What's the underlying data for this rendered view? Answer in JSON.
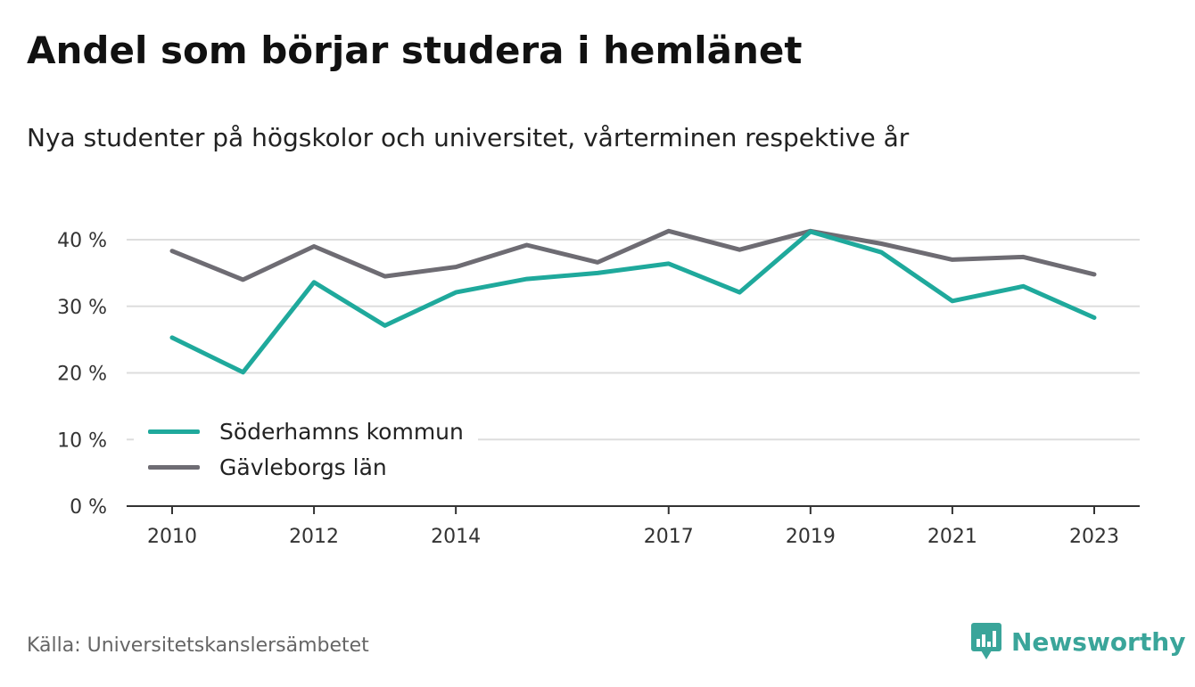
{
  "header": {
    "title": "Andel som börjar studera i hemlänet",
    "subtitle": "Nya studenter på högskolor och universitet, vårterminen respektive år"
  },
  "footer": {
    "source": "Källa: Universitetskanslersämbetet",
    "brand": "Newsworthy",
    "brand_icon": "bar-chart-speech-bubble-icon",
    "brand_color": "#3aa59a"
  },
  "chart_data": {
    "type": "line",
    "title": "Andel som börjar studera i hemlänet",
    "subtitle": "Nya studenter på högskolor och universitet, vårterminen respektive år",
    "xlabel": "",
    "ylabel": "",
    "x": [
      2010,
      2011,
      2012,
      2013,
      2014,
      2015,
      2016,
      2017,
      2018,
      2019,
      2020,
      2021,
      2022,
      2023
    ],
    "x_tick_labels": [
      "2010",
      "2012",
      "2014",
      "2017",
      "2019",
      "2021",
      "2023"
    ],
    "y_tick_labels": [
      "0 %",
      "10 %",
      "20 %",
      "30 %",
      "40 %"
    ],
    "y_ticks": [
      0,
      10,
      20,
      30,
      40
    ],
    "ylim": [
      0,
      40
    ],
    "grid": true,
    "legend_position": "bottom-left",
    "series": [
      {
        "name": "Söderhamns kommun",
        "color": "#1fa99c",
        "values": [
          25.3,
          20.1,
          33.6,
          27.1,
          32.1,
          34.1,
          35.0,
          36.4,
          32.1,
          41.2,
          38.1,
          30.8,
          33.0,
          28.3
        ]
      },
      {
        "name": "Gävleborgs län",
        "color": "#6e6c73",
        "values": [
          38.3,
          34.0,
          39.0,
          34.5,
          35.9,
          39.2,
          36.6,
          41.3,
          38.5,
          41.3,
          39.4,
          37.0,
          37.4,
          34.8
        ]
      }
    ]
  }
}
